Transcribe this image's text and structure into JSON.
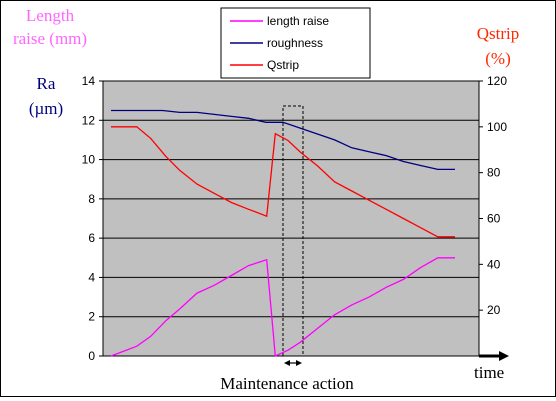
{
  "chart_data": {
    "type": "line",
    "left_axis_title": {
      "length_lines": [
        "Length",
        "raise (mm)"
      ],
      "ra_lines": [
        "Ra",
        "(µm)"
      ]
    },
    "right_axis_title": {
      "lines": [
        "Qstrip",
        "(%)"
      ]
    },
    "xlabel": "time",
    "annotation": "Maintenance action",
    "y_left": {
      "range": [
        0,
        14
      ],
      "ticks": [
        0,
        2,
        4,
        6,
        8,
        10,
        12,
        14
      ]
    },
    "y_right": {
      "range": [
        0,
        120
      ],
      "ticks": [
        20,
        40,
        60,
        80,
        100,
        120
      ]
    },
    "x_range": [
      0,
      20
    ],
    "grid": "horizontal",
    "legend_placement": "top-center",
    "series": [
      {
        "name": "length raise",
        "axis": "left",
        "color": "#ff00ff",
        "x": [
          0,
          1.5,
          2.3,
          3.2,
          4.0,
          5.0,
          6.0,
          7.0,
          8.0,
          9.05,
          9.55,
          10.3,
          11.0,
          12.0,
          13.0,
          14.0,
          15.0,
          16.0,
          17.0,
          18.0,
          19.0,
          20.0
        ],
        "y": [
          0,
          0.5,
          1.0,
          1.8,
          2.4,
          3.2,
          3.6,
          4.1,
          4.6,
          4.9,
          0.0,
          0.3,
          0.7,
          1.4,
          2.1,
          2.6,
          3.0,
          3.5,
          3.9,
          4.5,
          5.0,
          5.0
        ]
      },
      {
        "name": "roughness",
        "axis": "left",
        "color": "#000080",
        "x": [
          0,
          1,
          2,
          3,
          4,
          5,
          6,
          7,
          8,
          9,
          10,
          11,
          12,
          13,
          14,
          15,
          16,
          17,
          18,
          19,
          20
        ],
        "y": [
          12.5,
          12.5,
          12.5,
          12.5,
          12.4,
          12.4,
          12.3,
          12.2,
          12.1,
          11.9,
          11.9,
          11.6,
          11.3,
          11.0,
          10.6,
          10.4,
          10.2,
          9.9,
          9.7,
          9.5,
          9.5
        ]
      },
      {
        "name": "Qstrip",
        "axis": "right",
        "color": "#ff0000",
        "x": [
          0,
          1.5,
          2.3,
          3.2,
          4.0,
          5.0,
          6.0,
          7.0,
          8.0,
          9.05,
          9.55,
          10.3,
          11.0,
          12.0,
          13.0,
          14.0,
          15.0,
          16.0,
          17.0,
          18.0,
          19.0,
          20.0
        ],
        "y": [
          100,
          100,
          95,
          87,
          81,
          75,
          71,
          67,
          64,
          61,
          97,
          94,
          89,
          83,
          76,
          72,
          68,
          64,
          60,
          56,
          52,
          52
        ]
      }
    ]
  }
}
